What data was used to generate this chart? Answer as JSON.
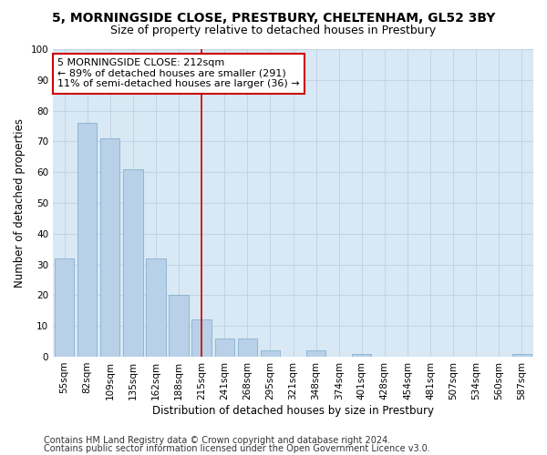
{
  "title": "5, MORNINGSIDE CLOSE, PRESTBURY, CHELTENHAM, GL52 3BY",
  "subtitle": "Size of property relative to detached houses in Prestbury",
  "xlabel": "Distribution of detached houses by size in Prestbury",
  "ylabel": "Number of detached properties",
  "categories": [
    "55sqm",
    "82sqm",
    "109sqm",
    "135sqm",
    "162sqm",
    "188sqm",
    "215sqm",
    "241sqm",
    "268sqm",
    "295sqm",
    "321sqm",
    "348sqm",
    "374sqm",
    "401sqm",
    "428sqm",
    "454sqm",
    "481sqm",
    "507sqm",
    "534sqm",
    "560sqm",
    "587sqm"
  ],
  "values": [
    32,
    76,
    71,
    61,
    32,
    20,
    12,
    6,
    6,
    2,
    0,
    2,
    0,
    1,
    0,
    0,
    0,
    0,
    0,
    0,
    1
  ],
  "bar_color": "#b8d0e8",
  "bar_edge_color": "#7aaac8",
  "vline_x": 6,
  "vline_color": "#cc0000",
  "annotation_line1": "5 MORNINGSIDE CLOSE: 212sqm",
  "annotation_line2": "← 89% of detached houses are smaller (291)",
  "annotation_line3": "11% of semi-detached houses are larger (36) →",
  "annotation_box_color": "#ffffff",
  "annotation_box_edge": "#cc0000",
  "ylim": [
    0,
    100
  ],
  "yticks": [
    0,
    10,
    20,
    30,
    40,
    50,
    60,
    70,
    80,
    90,
    100
  ],
  "grid_color": "#c0d0e0",
  "background_color": "#d8e8f4",
  "footer_line1": "Contains HM Land Registry data © Crown copyright and database right 2024.",
  "footer_line2": "Contains public sector information licensed under the Open Government Licence v3.0.",
  "title_fontsize": 10,
  "subtitle_fontsize": 9,
  "axis_label_fontsize": 8.5,
  "tick_fontsize": 7.5,
  "annotation_fontsize": 8,
  "footer_fontsize": 7
}
